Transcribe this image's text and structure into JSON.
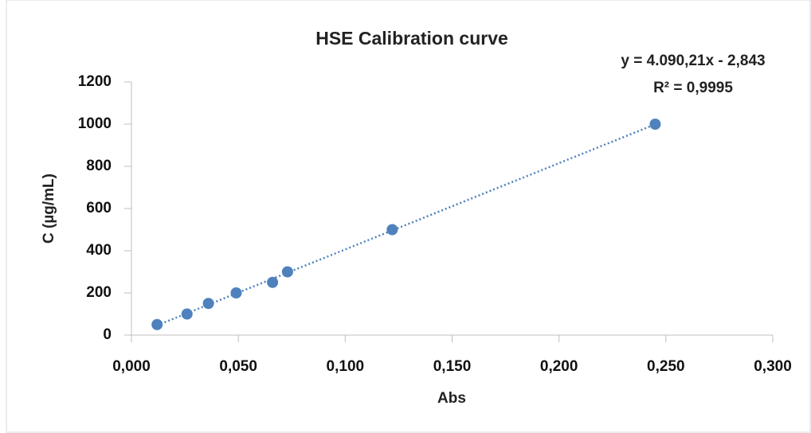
{
  "chart_data": {
    "type": "scatter",
    "title": "HSE Calibration curve",
    "x_label": "Abs",
    "y_label": "C (µg/mL)",
    "series": [
      {
        "color": "#4f81bd",
        "x": [
          0.012,
          0.026,
          0.036,
          0.049,
          0.066,
          0.073,
          0.122,
          0.245
        ],
        "values": [
          50,
          100,
          150,
          200,
          250,
          300,
          500,
          1000
        ]
      }
    ],
    "trendline": {
      "slope": 4090.21,
      "intercept": -2.843,
      "equation": "y = 4.090,21x - 2,843",
      "r_squared": "R² = 0,9995",
      "color": "#4f81bd"
    },
    "xlim": [
      0,
      0.3
    ],
    "xticks": [
      {
        "value": 0,
        "label": "0,000"
      },
      {
        "value": 0.05,
        "label": "0,050"
      },
      {
        "value": 0.1,
        "label": "0,100"
      },
      {
        "value": 0.15,
        "label": "0,150"
      },
      {
        "value": 0.2,
        "label": "0,200"
      },
      {
        "value": 0.25,
        "label": "0,250"
      },
      {
        "value": 0.3,
        "label": "0,300"
      }
    ],
    "ylim": [
      0,
      1200
    ],
    "yticks": [
      0,
      200,
      400,
      600,
      800,
      1000,
      1200
    ]
  }
}
